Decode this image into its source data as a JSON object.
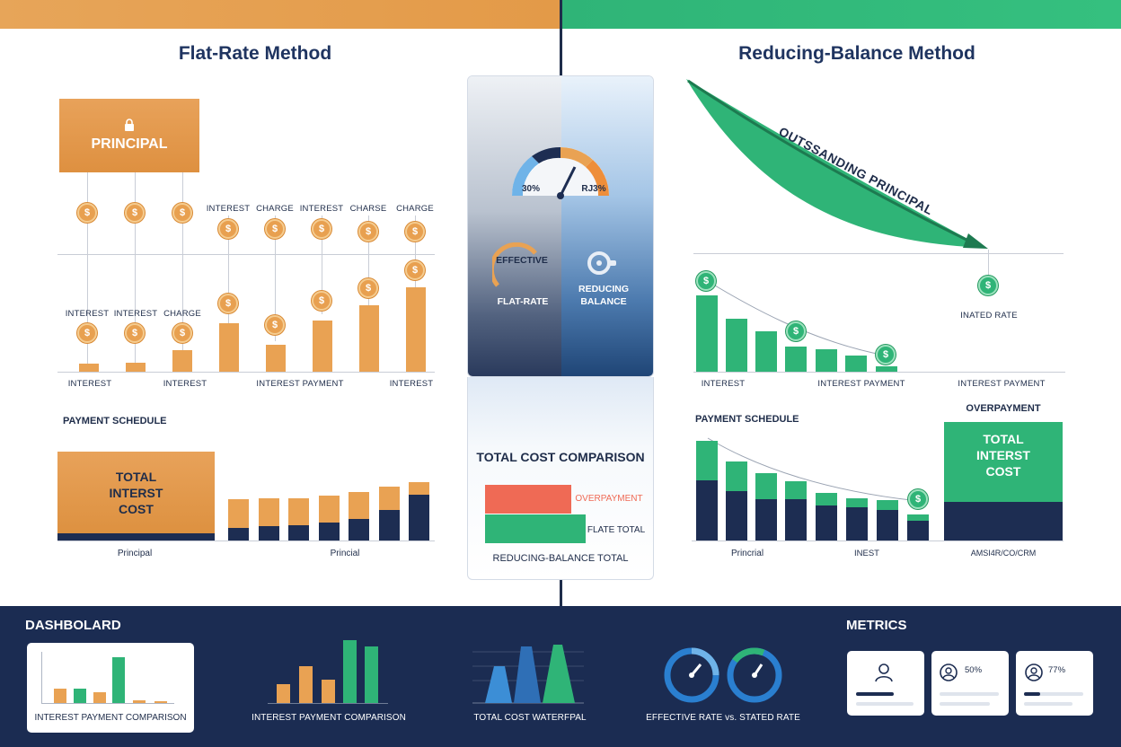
{
  "flat": {
    "title": "Flat-Rate Method",
    "principal": "PRINCIPAL",
    "top_labels": [
      "INTEREST",
      "CHARGE",
      "INTEREST",
      "CHARSE",
      "CHARGE"
    ],
    "mid_labels": [
      "INTEREST",
      "INTEREST",
      "CHARGE"
    ],
    "axis_labels": [
      "INTEREST",
      "INTEREST",
      "INTEREST PAYMENT",
      "INTEREST"
    ],
    "schedule_title": "PAYMENT SCHEDULE",
    "total_box": "TOTAL INTERST COST",
    "bottom_labels": [
      "Principal",
      "Princial"
    ]
  },
  "center": {
    "gauge_left": "30%",
    "gauge_right": "RJ3%",
    "effective": "EFFECTIVE",
    "flat_rate": "FLAT-RATE",
    "reducing": "REDUCING BALANCE",
    "comparison_title": "TOTAL COST COMPARISON",
    "overpayment": "OVERPAYMENT",
    "flat_total": "FLATE TOTAL",
    "reducing_total": "REDUCING-BALANCE TOTAL"
  },
  "reducing": {
    "title": "Reducing-Balance Method",
    "outstanding": "OUTSSANDING PRINCIPAL",
    "inated_rate": "INATED RATE",
    "axis_labels": [
      "INTEREST",
      "INTEREST PAYMENT",
      "INTEREST PAYMENT"
    ],
    "schedule_title": "PAYMENT SCHEDULE",
    "overpayment_title": "OVERPAYMENT",
    "total_box": "TOTAL INTERST COST",
    "bottom_labels": [
      "Princrial",
      "INEST",
      "AMSI4R/CO/CRM"
    ]
  },
  "dashboard": {
    "title": "DASHBOLARD",
    "metrics_title": "METRICS",
    "captions": [
      "INTEREST PAYMENT COMPARISON",
      "INTEREST PAYMENT COMPARISON",
      "TOTAL COST WATERFPAL",
      "EFFECTIVE RATE vs. STATED RATE"
    ],
    "metric_values": [
      "50%",
      "77%"
    ]
  },
  "colors": {
    "orange": "#e9a253",
    "green": "#2fb477",
    "navy": "#1d2d52",
    "red": "#ef6a55"
  },
  "icons": [
    "lock-icon",
    "dollar-coin-icon",
    "gauge-icon",
    "user-icon",
    "arrow-down-icon"
  ]
}
